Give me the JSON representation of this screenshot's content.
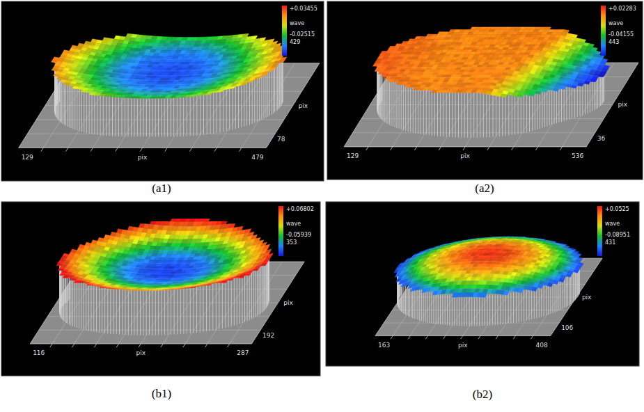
{
  "chart_data": [
    {
      "type": "surface",
      "caption": "(a1)",
      "colorbar": {
        "max": {
          "value": 0.03455,
          "label": "+0.03455"
        },
        "title": "wave",
        "min": -0.02515,
        "count": 429
      },
      "xlabel": "pix",
      "xticks": [
        129,
        479
      ],
      "ylabel": "pix",
      "yticks": [
        78
      ]
    },
    {
      "type": "surface",
      "caption": "(a2)",
      "colorbar": {
        "max": {
          "value": 0.02283,
          "label": "+0.02283"
        },
        "title": "wave",
        "min": -0.04155,
        "count": 443
      },
      "xlabel": "pix",
      "xticks": [
        129,
        536
      ],
      "ylabel": "pix",
      "yticks": [
        36
      ]
    },
    {
      "type": "surface",
      "caption": "(b1)",
      "colorbar": {
        "max": {
          "value": 0.06802,
          "label": "+0.06802"
        },
        "title": "wave",
        "min": -0.05939,
        "count": 353
      },
      "xlabel": "pix",
      "xticks": [
        116,
        287
      ],
      "ylabel": "pix",
      "yticks": [
        192
      ]
    },
    {
      "type": "surface",
      "caption": "(b2)",
      "colorbar": {
        "max": {
          "value": 0.0525,
          "label": "+0.0525"
        },
        "title": "wave",
        "min": -0.08951,
        "count": 431
      },
      "xlabel": "pix",
      "xticks": [
        163,
        408
      ],
      "ylabel": "pix",
      "yticks": [
        106
      ]
    }
  ]
}
